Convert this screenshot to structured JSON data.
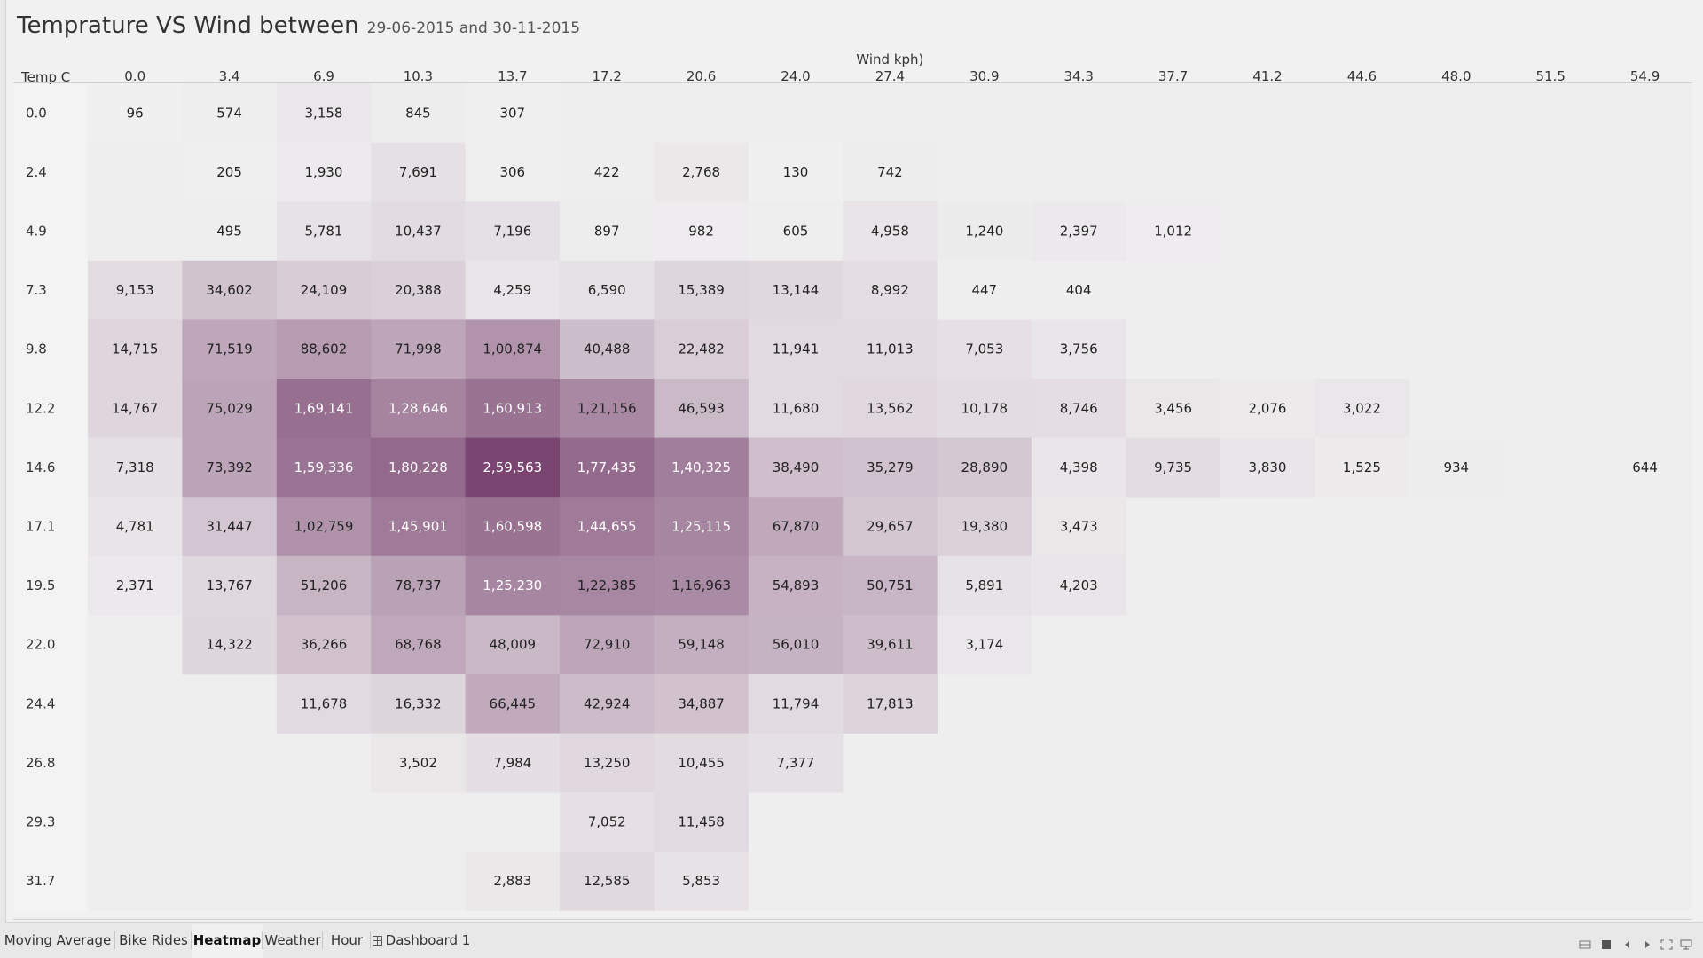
{
  "header": {
    "title": "Temprature VS Wind between",
    "subtitle": "29-06-2015 and 30-11-2015"
  },
  "chart_data": {
    "type": "heatmap",
    "xlabel": "Wind kph)",
    "ylabel": "Temp C",
    "x": [
      "0.0",
      "3.4",
      "6.9",
      "10.3",
      "13.7",
      "17.2",
      "20.6",
      "24.0",
      "27.4",
      "30.9",
      "34.3",
      "37.7",
      "41.2",
      "44.6",
      "48.0",
      "51.5",
      "54.9"
    ],
    "y": [
      "0.0",
      "2.4",
      "4.9",
      "7.3",
      "9.8",
      "12.2",
      "14.6",
      "17.1",
      "19.5",
      "22.0",
      "24.4",
      "26.8",
      "29.3",
      "31.7"
    ],
    "values": [
      [
        96,
        574,
        3158,
        845,
        307,
        null,
        null,
        null,
        null,
        null,
        null,
        null,
        null,
        null,
        null,
        null,
        null
      ],
      [
        null,
        205,
        1930,
        7691,
        306,
        422,
        2768,
        130,
        742,
        null,
        null,
        null,
        null,
        null,
        null,
        null,
        null
      ],
      [
        null,
        495,
        5781,
        10437,
        7196,
        897,
        982,
        605,
        4958,
        1240,
        2397,
        1012,
        null,
        null,
        null,
        null,
        null
      ],
      [
        9153,
        34602,
        24109,
        20388,
        4259,
        6590,
        15389,
        13144,
        8992,
        447,
        404,
        null,
        null,
        null,
        null,
        null,
        null
      ],
      [
        14715,
        71519,
        88602,
        71998,
        100874,
        40488,
        22482,
        11941,
        11013,
        7053,
        3756,
        null,
        null,
        null,
        null,
        null,
        null
      ],
      [
        14767,
        75029,
        169141,
        128646,
        160913,
        121156,
        46593,
        11680,
        13562,
        10178,
        8746,
        3456,
        2076,
        3022,
        null,
        null,
        null
      ],
      [
        7318,
        73392,
        159336,
        180228,
        259563,
        177435,
        140325,
        38490,
        35279,
        28890,
        4398,
        9735,
        3830,
        1525,
        934,
        null,
        644
      ],
      [
        4781,
        31447,
        102759,
        145901,
        160598,
        144655,
        125115,
        67870,
        29657,
        19380,
        3473,
        null,
        null,
        null,
        null,
        null,
        null
      ],
      [
        2371,
        13767,
        51206,
        78737,
        125230,
        122385,
        116963,
        54893,
        50751,
        5891,
        4203,
        null,
        null,
        null,
        null,
        null,
        null
      ],
      [
        null,
        14322,
        36266,
        68768,
        48009,
        72910,
        59148,
        56010,
        39611,
        3174,
        null,
        null,
        null,
        null,
        null,
        null,
        null
      ],
      [
        null,
        null,
        11678,
        16332,
        66445,
        42924,
        34887,
        11794,
        17813,
        null,
        null,
        null,
        null,
        null,
        null,
        null,
        null
      ],
      [
        null,
        null,
        null,
        3502,
        7984,
        13250,
        10455,
        7377,
        null,
        null,
        null,
        null,
        null,
        null,
        null,
        null,
        null
      ],
      [
        null,
        null,
        null,
        null,
        null,
        7052,
        11458,
        null,
        null,
        null,
        null,
        null,
        null,
        null,
        null,
        null,
        null
      ],
      [
        null,
        null,
        null,
        null,
        2883,
        12585,
        5853,
        null,
        null,
        null,
        null,
        null,
        null,
        null,
        null,
        null,
        null
      ]
    ],
    "labels": [
      [
        "96",
        "574",
        "3,158",
        "845",
        "307",
        "",
        "",
        "",
        "",
        "",
        "",
        "",
        "",
        "",
        "",
        "",
        ""
      ],
      [
        "",
        "205",
        "1,930",
        "7,691",
        "306",
        "422",
        "2,768",
        "130",
        "742",
        "",
        "",
        "",
        "",
        "",
        "",
        "",
        ""
      ],
      [
        "",
        "495",
        "5,781",
        "10,437",
        "7,196",
        "897",
        "982",
        "605",
        "4,958",
        "1,240",
        "2,397",
        "1,012",
        "",
        "",
        "",
        "",
        ""
      ],
      [
        "9,153",
        "34,602",
        "24,109",
        "20,388",
        "4,259",
        "6,590",
        "15,389",
        "13,144",
        "8,992",
        "447",
        "404",
        "",
        "",
        "",
        "",
        "",
        ""
      ],
      [
        "14,715",
        "71,519",
        "88,602",
        "71,998",
        "1,00,874",
        "40,488",
        "22,482",
        "11,941",
        "11,013",
        "7,053",
        "3,756",
        "",
        "",
        "",
        "",
        "",
        ""
      ],
      [
        "14,767",
        "75,029",
        "1,69,141",
        "1,28,646",
        "1,60,913",
        "1,21,156",
        "46,593",
        "11,680",
        "13,562",
        "10,178",
        "8,746",
        "3,456",
        "2,076",
        "3,022",
        "",
        "",
        ""
      ],
      [
        "7,318",
        "73,392",
        "1,59,336",
        "1,80,228",
        "2,59,563",
        "1,77,435",
        "1,40,325",
        "38,490",
        "35,279",
        "28,890",
        "4,398",
        "9,735",
        "3,830",
        "1,525",
        "934",
        "",
        "644"
      ],
      [
        "4,781",
        "31,447",
        "1,02,759",
        "1,45,901",
        "1,60,598",
        "1,44,655",
        "1,25,115",
        "67,870",
        "29,657",
        "19,380",
        "3,473",
        "",
        "",
        "",
        "",
        "",
        ""
      ],
      [
        "2,371",
        "13,767",
        "51,206",
        "78,737",
        "1,25,230",
        "1,22,385",
        "1,16,963",
        "54,893",
        "50,751",
        "5,891",
        "4,203",
        "",
        "",
        "",
        "",
        "",
        ""
      ],
      [
        "",
        "14,322",
        "36,266",
        "68,768",
        "48,009",
        "72,910",
        "59,148",
        "56,010",
        "39,611",
        "3,174",
        "",
        "",
        "",
        "",
        "",
        "",
        ""
      ],
      [
        "",
        "",
        "11,678",
        "16,332",
        "66,445",
        "42,924",
        "34,887",
        "11,794",
        "17,813",
        "",
        "",
        "",
        "",
        "",
        "",
        "",
        ""
      ],
      [
        "",
        "",
        "",
        "3,502",
        "7,984",
        "13,250",
        "10,455",
        "7,377",
        "",
        "",
        "",
        "",
        "",
        "",
        "",
        "",
        ""
      ],
      [
        "",
        "",
        "",
        "",
        "",
        "7,052",
        "11,458",
        "",
        "",
        "",
        "",
        "",
        "",
        "",
        "",
        "",
        ""
      ],
      [
        "",
        "",
        "",
        "",
        "2,883",
        "12,585",
        "5,853",
        "",
        "",
        "",
        "",
        "",
        "",
        "",
        "",
        "",
        ""
      ]
    ],
    "color_scale": {
      "low": "#f1f1f1",
      "high": "#7a4571"
    },
    "grid": false,
    "legend": "none"
  },
  "tabs": [
    {
      "label": "Moving Average",
      "active": false,
      "icon": ""
    },
    {
      "label": "Bike Rides",
      "active": false,
      "icon": ""
    },
    {
      "label": "Heatmap",
      "active": true,
      "icon": ""
    },
    {
      "label": "Weather",
      "active": false,
      "icon": ""
    },
    {
      "label": "Hour",
      "active": false,
      "icon": ""
    },
    {
      "label": "Dashboard 1",
      "active": false,
      "icon": "dashboard-grid-icon"
    }
  ],
  "nav_icons": [
    "show-sheet-sorter-icon",
    "show-filmstrip-icon",
    "previous-sheet-icon",
    "next-sheet-icon",
    "fit-to-window-icon",
    "presentation-mode-icon"
  ]
}
